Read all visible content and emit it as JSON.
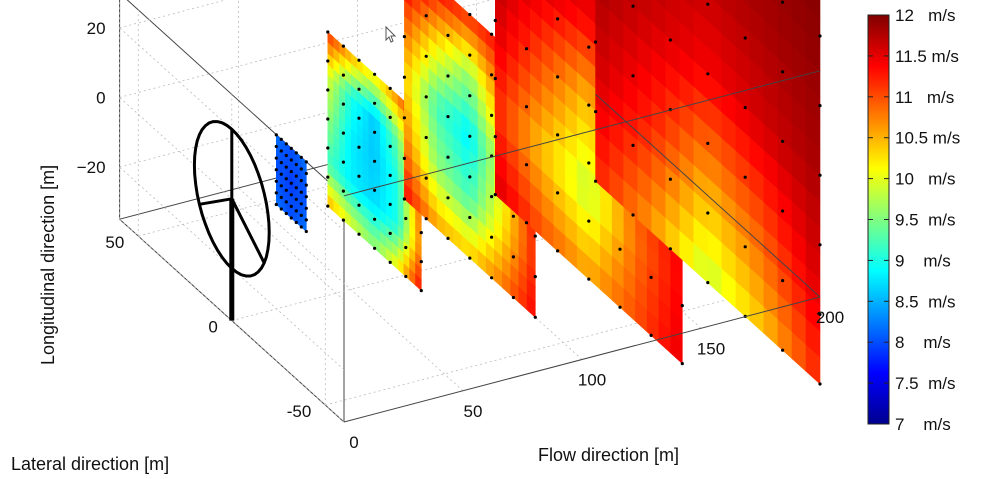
{
  "chart_data": {
    "type": "3d-slices",
    "xlabel": "Flow direction [m]",
    "ylabel": "Lateral direction [m]",
    "zlabel": "Longitudinal direction [m]",
    "x_ticks": [
      0,
      50,
      100,
      150,
      200
    ],
    "y_ticks": [
      -50,
      0,
      50
    ],
    "z_ticks": [
      -20,
      0,
      20
    ],
    "xlim": [
      0,
      200
    ],
    "ylim": [
      -60,
      60
    ],
    "zlim": [
      -35,
      30
    ],
    "grid": true,
    "colormap": "jet",
    "colorbar": {
      "min": 7,
      "max": 12,
      "labels": [
        "12   m/s",
        "11.5 m/s",
        "11   m/s",
        "10.5 m/s",
        "10   m/s",
        "9.5  m/s",
        "9    m/s",
        "8.5  m/s",
        "8    m/s",
        "7.5  m/s",
        "7    m/s"
      ]
    },
    "turbine": {
      "x": 0,
      "y": 0,
      "hub_height": 0,
      "rotor_radius": 20,
      "color": "#000000"
    },
    "slices": [
      {
        "x": 25,
        "half_width": 8,
        "half_height": 10,
        "grid": [
          5,
          5
        ],
        "values": [
          [
            8.2,
            8.1,
            8.0,
            8.1,
            8.2
          ],
          [
            8.1,
            8.0,
            8.0,
            8.0,
            8.1
          ],
          [
            8.0,
            8.0,
            7.9,
            8.0,
            8.0
          ],
          [
            8.1,
            8.0,
            8.0,
            8.0,
            8.1
          ],
          [
            8.2,
            8.1,
            8.0,
            8.1,
            8.2
          ]
        ]
      },
      {
        "x": 60,
        "half_width": 25,
        "half_height": 25,
        "grid": [
          5,
          5
        ],
        "values": [
          [
            11.2,
            10.6,
            10.2,
            10.8,
            11.6
          ],
          [
            10.0,
            9.0,
            8.6,
            9.4,
            11.2
          ],
          [
            9.6,
            8.8,
            8.6,
            9.0,
            11.0
          ],
          [
            9.2,
            8.8,
            8.7,
            9.0,
            10.8
          ],
          [
            10.6,
            10.0,
            9.6,
            10.2,
            11.4
          ]
        ]
      },
      {
        "x": 100,
        "half_width": 35,
        "half_height": 35,
        "grid": [
          5,
          5
        ],
        "values": [
          [
            11.8,
            11.4,
            11.2,
            11.4,
            11.8
          ],
          [
            11.0,
            10.2,
            9.6,
            10.8,
            11.6
          ],
          [
            10.4,
            9.2,
            8.8,
            10.0,
            11.4
          ],
          [
            10.8,
            9.6,
            9.2,
            10.2,
            11.2
          ],
          [
            11.4,
            10.6,
            10.4,
            10.8,
            11.4
          ]
        ]
      },
      {
        "x": 150,
        "half_width": 50,
        "half_height": 50,
        "grid": [
          5,
          5
        ],
        "values": [
          [
            11.9,
            11.8,
            11.7,
            11.8,
            11.9
          ],
          [
            11.8,
            11.6,
            11.4,
            11.6,
            11.8
          ],
          [
            11.6,
            11.0,
            10.4,
            11.2,
            11.6
          ],
          [
            11.2,
            10.4,
            9.8,
            10.8,
            11.4
          ],
          [
            11.6,
            11.0,
            10.6,
            11.0,
            11.5
          ]
        ]
      },
      {
        "x": 200,
        "half_width": 60,
        "half_height": 60,
        "grid": [
          5,
          5
        ],
        "values": [
          [
            12.0,
            11.9,
            11.9,
            11.9,
            12.0
          ],
          [
            11.9,
            11.8,
            11.7,
            11.8,
            11.9
          ],
          [
            11.8,
            11.6,
            11.4,
            11.6,
            11.8
          ],
          [
            11.6,
            11.2,
            10.6,
            11.0,
            11.6
          ],
          [
            11.2,
            10.6,
            9.8,
            10.4,
            11.2
          ]
        ]
      }
    ]
  }
}
